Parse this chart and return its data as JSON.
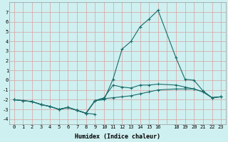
{
  "xlabel": "Humidex (Indice chaleur)",
  "bg_color": "#cff0f0",
  "line_color": "#1a6b6b",
  "grid_color": "#d8a0a0",
  "xlim": [
    -0.5,
    23.5
  ],
  "ylim": [
    -4.5,
    8.0
  ],
  "yticks": [
    -4,
    -3,
    -2,
    -1,
    0,
    1,
    2,
    3,
    4,
    5,
    6,
    7
  ],
  "xticks": [
    0,
    1,
    2,
    3,
    4,
    5,
    6,
    7,
    8,
    9,
    10,
    11,
    12,
    13,
    14,
    15,
    16,
    17,
    18,
    19,
    20,
    21,
    22,
    23
  ],
  "xtick_labels": [
    "0",
    "1",
    "2",
    "3",
    "4",
    "5",
    "6",
    "7",
    "8",
    "9",
    "10",
    "11",
    "12",
    "13",
    "14",
    "15",
    "16",
    "",
    "18",
    "19",
    "20",
    "21",
    "22",
    "23"
  ],
  "lines": [
    {
      "x": [
        0,
        1,
        2,
        3,
        4,
        5,
        6,
        7,
        8,
        9,
        10,
        11,
        12,
        13,
        14,
        15,
        16,
        18,
        19,
        20,
        21,
        22,
        23
      ],
      "y": [
        -2.0,
        -2.1,
        -2.2,
        -2.5,
        -2.7,
        -3.0,
        -2.8,
        -3.1,
        -3.4,
        -2.1,
        -2.0,
        0.1,
        3.2,
        4.0,
        5.5,
        6.3,
        7.2,
        2.3,
        0.1,
        0.0,
        -1.1,
        -1.8,
        -1.7
      ]
    },
    {
      "x": [
        0,
        1,
        2,
        3,
        4,
        5,
        6,
        7,
        8,
        9,
        10,
        11,
        12,
        13,
        14,
        15,
        16,
        18,
        19,
        20,
        21,
        22,
        23
      ],
      "y": [
        -2.0,
        -2.1,
        -2.2,
        -2.5,
        -2.7,
        -3.0,
        -2.8,
        -3.1,
        -3.4,
        -2.1,
        -1.8,
        -0.5,
        -0.7,
        -0.8,
        -0.5,
        -0.5,
        -0.4,
        -0.5,
        -0.7,
        -0.9,
        -1.2,
        -1.8,
        -1.7
      ]
    },
    {
      "x": [
        0,
        1,
        2,
        3,
        4,
        5,
        6,
        7,
        8,
        9,
        10,
        11,
        12,
        13,
        14,
        15,
        16,
        18,
        19,
        20,
        21,
        22,
        23
      ],
      "y": [
        -2.0,
        -2.1,
        -2.2,
        -2.5,
        -2.7,
        -3.0,
        -2.8,
        -3.1,
        -3.4,
        -2.1,
        -1.9,
        -1.8,
        -1.7,
        -1.6,
        -1.4,
        -1.2,
        -1.0,
        -0.9,
        -0.9,
        -0.9,
        -1.2,
        -1.8,
        -1.7
      ]
    },
    {
      "x": [
        5,
        6,
        7,
        8,
        9
      ],
      "y": [
        -3.0,
        -2.8,
        -3.1,
        -3.4,
        -3.5
      ]
    }
  ]
}
